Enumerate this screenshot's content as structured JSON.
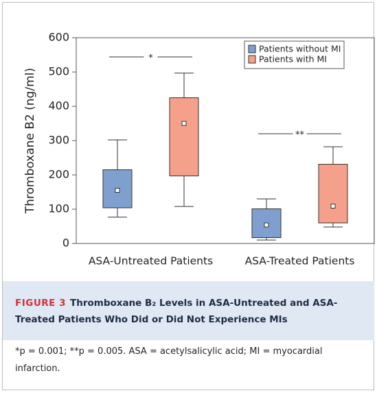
{
  "chart_data": {
    "type": "box",
    "y_label": "Thromboxane B2 (ng/ml)",
    "categories": [
      "ASA-Untreated Patients",
      "ASA-Treated Patients"
    ],
    "series": [
      {
        "name": "Patients without MI",
        "color": "#7f9fcf",
        "min": [
          77,
          10
        ],
        "q1": [
          104,
          17
        ],
        "q3": [
          215,
          101
        ],
        "max": [
          302,
          130
        ],
        "mean": [
          155,
          54
        ]
      },
      {
        "name": "Patients with MI",
        "color": "#f4a08a",
        "min": [
          108,
          48
        ],
        "q1": [
          197,
          60
        ],
        "q3": [
          425,
          231
        ],
        "max": [
          497,
          282
        ],
        "mean": [
          350,
          109
        ]
      }
    ],
    "annotations": [
      "*",
      "**"
    ],
    "ylim": [
      0,
      600
    ],
    "yticks": [
      0,
      100,
      200,
      300,
      400,
      500,
      600
    ],
    "legend": "top-right"
  },
  "caption": {
    "label": "FIGURE 3",
    "title": "Thromboxane B₂ Levels in ASA-Untreated and ASA-Treated Patients Who Did or Did Not Experience MIs",
    "footnote": "*p = 0.001; **p = 0.005. ASA = acetylsalicylic acid; MI = myocardial infarction."
  }
}
